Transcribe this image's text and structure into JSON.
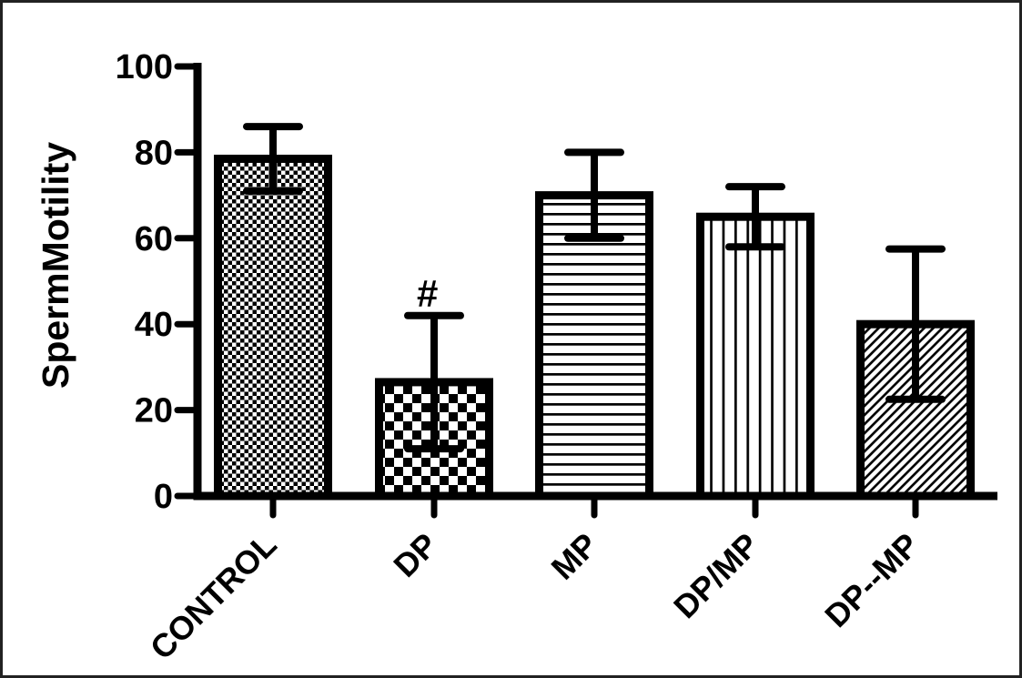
{
  "figure": {
    "background": "#ffffff",
    "border_color": "#222222"
  },
  "chart_data": {
    "type": "bar",
    "title": "",
    "ylabel": "SpermMotility",
    "xlabel": "",
    "ylim": [
      0,
      100
    ],
    "yticks": [
      0,
      20,
      40,
      60,
      80,
      100
    ],
    "categories": [
      "CONTROL",
      "DP",
      "MP",
      "DP/MP",
      "DP--MP"
    ],
    "values": [
      78.5,
      26.5,
      70,
      65,
      40
    ],
    "errors": [
      7.5,
      15.5,
      10,
      7,
      17.5
    ],
    "error_style": "symmetric-caps",
    "bar_patterns": [
      "fine-checker",
      "coarse-checker",
      "horizontal-lines",
      "vertical-lines",
      "diagonal-lines"
    ],
    "annotations": [
      {
        "category": "DP",
        "text": "#"
      }
    ],
    "colors": {
      "bar_outline": "#000000",
      "pattern_ink": "#000000",
      "bar_fill_background": "#ffffff",
      "text": "#000000"
    },
    "grid": false,
    "legend_position": "none"
  }
}
